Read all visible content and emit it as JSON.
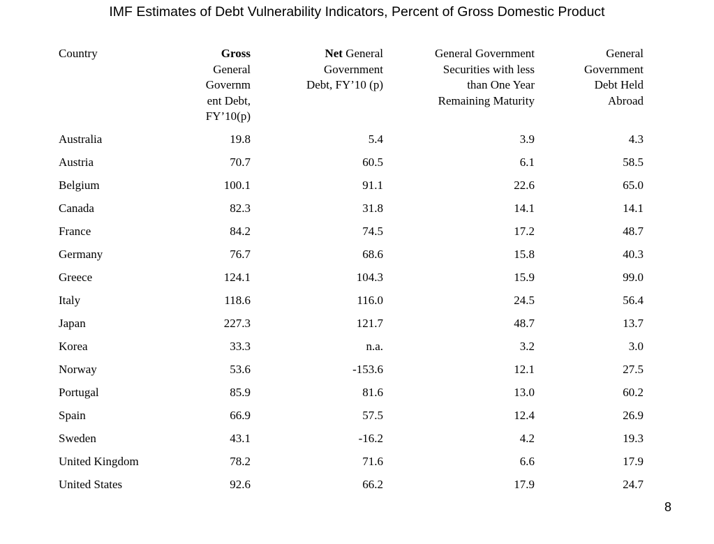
{
  "slide": {
    "title": "IMF Estimates of Debt Vulnerability Indicators, Percent of Gross Domestic Product",
    "page_number": "8"
  },
  "table": {
    "headers": {
      "country": "Country",
      "gross": {
        "bold": "Gross",
        "lines": [
          "General",
          "Governm",
          "ent Debt,",
          "FY’10(p)"
        ]
      },
      "net": {
        "bold": "Net",
        "rest": " General",
        "lines": [
          "Government",
          "Debt, FY’10 (p)"
        ]
      },
      "securities": {
        "lines": [
          "General Government",
          "Securities with less",
          "than One Year",
          "Remaining Maturity"
        ]
      },
      "abroad": {
        "lines": [
          "General",
          "Government",
          "Debt Held",
          "Abroad"
        ]
      }
    },
    "rows": [
      {
        "country": "Australia",
        "gross": "19.8",
        "net": "5.4",
        "securities": "3.9",
        "abroad": "4.3"
      },
      {
        "country": "Austria",
        "gross": "70.7",
        "net": "60.5",
        "securities": "6.1",
        "abroad": "58.5"
      },
      {
        "country": "Belgium",
        "gross": "100.1",
        "net": "91.1",
        "securities": "22.6",
        "abroad": "65.0"
      },
      {
        "country": "Canada",
        "gross": "82.3",
        "net": "31.8",
        "securities": "14.1",
        "abroad": "14.1"
      },
      {
        "country": "France",
        "gross": "84.2",
        "net": "74.5",
        "securities": "17.2",
        "abroad": "48.7"
      },
      {
        "country": "Germany",
        "gross": "76.7",
        "net": "68.6",
        "securities": "15.8",
        "abroad": "40.3"
      },
      {
        "country": "Greece",
        "gross": "124.1",
        "net": "104.3",
        "securities": "15.9",
        "abroad": "99.0"
      },
      {
        "country": "Italy",
        "gross": "118.6",
        "net": "116.0",
        "securities": "24.5",
        "abroad": "56.4"
      },
      {
        "country": "Japan",
        "gross": "227.3",
        "net": "121.7",
        "securities": "48.7",
        "abroad": "13.7"
      },
      {
        "country": "Korea",
        "gross": "33.3",
        "net": "n.a.",
        "securities": "3.2",
        "abroad": "3.0"
      },
      {
        "country": "Norway",
        "gross": "53.6",
        "net": "-153.6",
        "securities": "12.1",
        "abroad": "27.5"
      },
      {
        "country": "Portugal",
        "gross": "85.9",
        "net": "81.6",
        "securities": "13.0",
        "abroad": "60.2"
      },
      {
        "country": "Spain",
        "gross": "66.9",
        "net": "57.5",
        "securities": "12.4",
        "abroad": "26.9"
      },
      {
        "country": "Sweden",
        "gross": "43.1",
        "net": "-16.2",
        "securities": "4.2",
        "abroad": "19.3"
      },
      {
        "country": "United Kingdom",
        "gross": "78.2",
        "net": "71.6",
        "securities": "6.6",
        "abroad": "17.9"
      },
      {
        "country": "United States",
        "gross": "92.6",
        "net": "66.2",
        "securities": "17.9",
        "abroad": "24.7"
      }
    ]
  }
}
